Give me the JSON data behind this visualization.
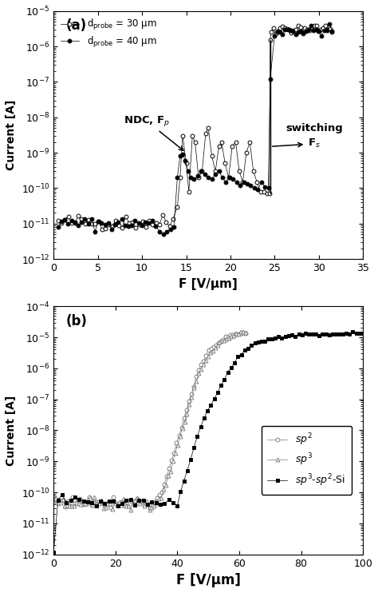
{
  "panel_a": {
    "xlabel": "F [V/μm]",
    "ylabel": "Current [A]",
    "xlim": [
      0,
      35
    ],
    "ylim_log": [
      -12,
      -5
    ],
    "label": "(a)",
    "legend1": "d$_\\mathrm{probe}$ = 30 μm",
    "legend2": "d$_\\mathrm{probe}$ = 40 μm",
    "annotation_ndc": "NDC, F$_p$",
    "annotation_switch_line1": "switching",
    "annotation_switch_line2": "F$_s$",
    "switch_x": 24.5
  },
  "panel_b": {
    "xlabel": "F [V/μm]",
    "ylabel": "Current [A]",
    "xlim": [
      0,
      100
    ],
    "ylim_log": [
      -12,
      -4
    ],
    "label": "(b)",
    "legend_sp2": "$sp^2$",
    "legend_sp3": "$sp^3$",
    "legend_sp3sp2si": "$sp^3$-$sp^2$-Si"
  }
}
